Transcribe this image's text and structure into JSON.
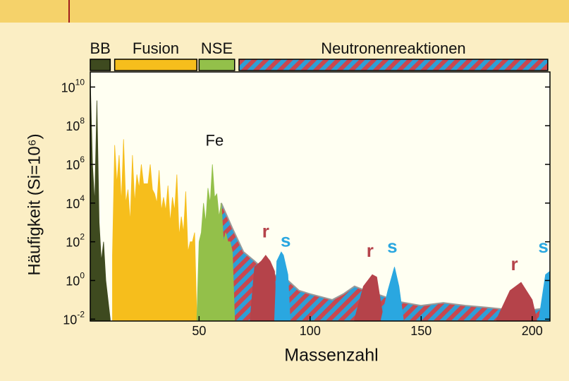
{
  "chart_data": {
    "type": "area",
    "x_label": "Massenzahl",
    "y_label": "Häufigkeit (Si=10⁶)",
    "log_y": true,
    "xlim": [
      1,
      208
    ],
    "ylim": [
      0.008,
      60000000000
    ],
    "xticks": [
      50,
      100,
      150,
      200
    ],
    "yticks": [
      {
        "value": 0.01,
        "label": "10",
        "exp": "-2"
      },
      {
        "value": 1,
        "label": "10",
        "exp": "0"
      },
      {
        "value": 100,
        "label": "10",
        "exp": "2"
      },
      {
        "value": 10000,
        "label": "10",
        "exp": "4"
      },
      {
        "value": 1000000,
        "label": "10",
        "exp": "6"
      },
      {
        "value": 100000000,
        "label": "10",
        "exp": "8"
      },
      {
        "value": 10000000000,
        "label": "10",
        "exp": "10"
      }
    ],
    "processes": [
      {
        "name": "BB",
        "color": "#3e4a1f",
        "range": [
          1,
          10
        ]
      },
      {
        "name": "Fusion",
        "color": "#f6be1c",
        "range": [
          12,
          49
        ]
      },
      {
        "name": "NSE",
        "color": "#93c04a",
        "range": [
          50,
          66
        ]
      },
      {
        "name": "Neutronenreaktionen",
        "color": "#c9474f",
        "stripe_color": "#2e9fd6",
        "range": [
          68,
          207
        ]
      }
    ],
    "series": [
      {
        "color": "#c9474f",
        "stripe_color": "#2e9fd6",
        "x": [
          60,
          65,
          70,
          75,
          80,
          90,
          95,
          100,
          110,
          115,
          120,
          125,
          130,
          140,
          150,
          160,
          170,
          180,
          190,
          200,
          208
        ],
        "values": [
          10000,
          500,
          30,
          10,
          3,
          1,
          0.3,
          0.2,
          0.1,
          0.2,
          0.5,
          0.3,
          0.2,
          0.08,
          0.05,
          0.07,
          0.05,
          0.04,
          0.03,
          0.03,
          0.04
        ]
      },
      {
        "color": "#3e4a1f",
        "x": [
          1,
          2,
          3,
          4,
          5,
          6,
          7,
          8,
          9,
          10
        ],
        "values": [
          30000000000,
          1000000,
          10000,
          2000000000,
          1000,
          10,
          100,
          1,
          0.1,
          0.01
        ]
      },
      {
        "color": "#f6be1c",
        "x": [
          11,
          12,
          13,
          14,
          15,
          16,
          17,
          18,
          19,
          20,
          21,
          22,
          23,
          24,
          25,
          26,
          27,
          28,
          29,
          30,
          31,
          32,
          33,
          34,
          35,
          36,
          37,
          38,
          39,
          40,
          41,
          42,
          43,
          44,
          45,
          46,
          47,
          48,
          49
        ],
        "values": [
          20,
          10000000,
          100000,
          3000000,
          10000,
          20000000,
          10000,
          50000,
          1000,
          3000000,
          10000,
          300000,
          60000,
          1000000,
          100000,
          100000,
          100000,
          1000000,
          50000,
          30000,
          10000,
          500000,
          4000,
          20000,
          4000,
          80000,
          1000,
          20000,
          4000,
          300000,
          200,
          2000,
          300,
          40000,
          30,
          100,
          100,
          300,
          0.01
        ]
      },
      {
        "color": "#93c04a",
        "x": [
          49,
          50,
          51,
          52,
          53,
          54,
          55,
          56,
          57,
          58,
          59,
          60,
          61,
          62,
          63,
          64,
          65,
          66
        ],
        "values": [
          0.01,
          100,
          300,
          10000,
          1000,
          60000,
          10000,
          1000000,
          20000,
          30000,
          2000,
          10000,
          100,
          300,
          100,
          100,
          30,
          0.01
        ]
      },
      {
        "color": "#b5434a",
        "x": [
          73,
          75,
          78,
          80,
          82,
          84,
          85
        ],
        "values": [
          0.01,
          5,
          10,
          20,
          10,
          3,
          0.01
        ]
      },
      {
        "color": "#2aa7e0",
        "x": [
          84,
          85,
          87,
          88,
          90,
          91
        ],
        "values": [
          0.01,
          10,
          30,
          20,
          2,
          0.01
        ]
      },
      {
        "color": "#b5434a",
        "x": [
          120,
          124,
          128,
          130,
          133
        ],
        "values": [
          0.01,
          0.5,
          2,
          1.5,
          0.01
        ]
      },
      {
        "color": "#2aa7e0",
        "x": [
          132,
          135,
          138,
          140,
          142
        ],
        "values": [
          0.01,
          0.3,
          5,
          0.5,
          0.01
        ]
      },
      {
        "color": "#b5434a",
        "x": [
          184,
          190,
          195,
          200,
          202
        ],
        "values": [
          0.01,
          0.3,
          0.8,
          0.1,
          0.01
        ]
      },
      {
        "color": "#2aa7e0",
        "x": [
          203,
          206,
          208
        ],
        "values": [
          0.01,
          2,
          3
        ]
      }
    ],
    "annotations": [
      {
        "text": "Fe",
        "color": "#111111",
        "x": 57,
        "y": 15000000
      },
      {
        "text": "r",
        "color": "#b5434a",
        "x": 80,
        "y": 300
      },
      {
        "text": "s",
        "color": "#2aa7e0",
        "x": 89,
        "y": 100
      },
      {
        "text": "r",
        "color": "#b5434a",
        "x": 127,
        "y": 30
      },
      {
        "text": "s",
        "color": "#2aa7e0",
        "x": 137,
        "y": 50
      },
      {
        "text": "r",
        "color": "#b5434a",
        "x": 192,
        "y": 6
      },
      {
        "text": "s",
        "color": "#2aa7e0",
        "x": 205,
        "y": 50
      }
    ]
  }
}
